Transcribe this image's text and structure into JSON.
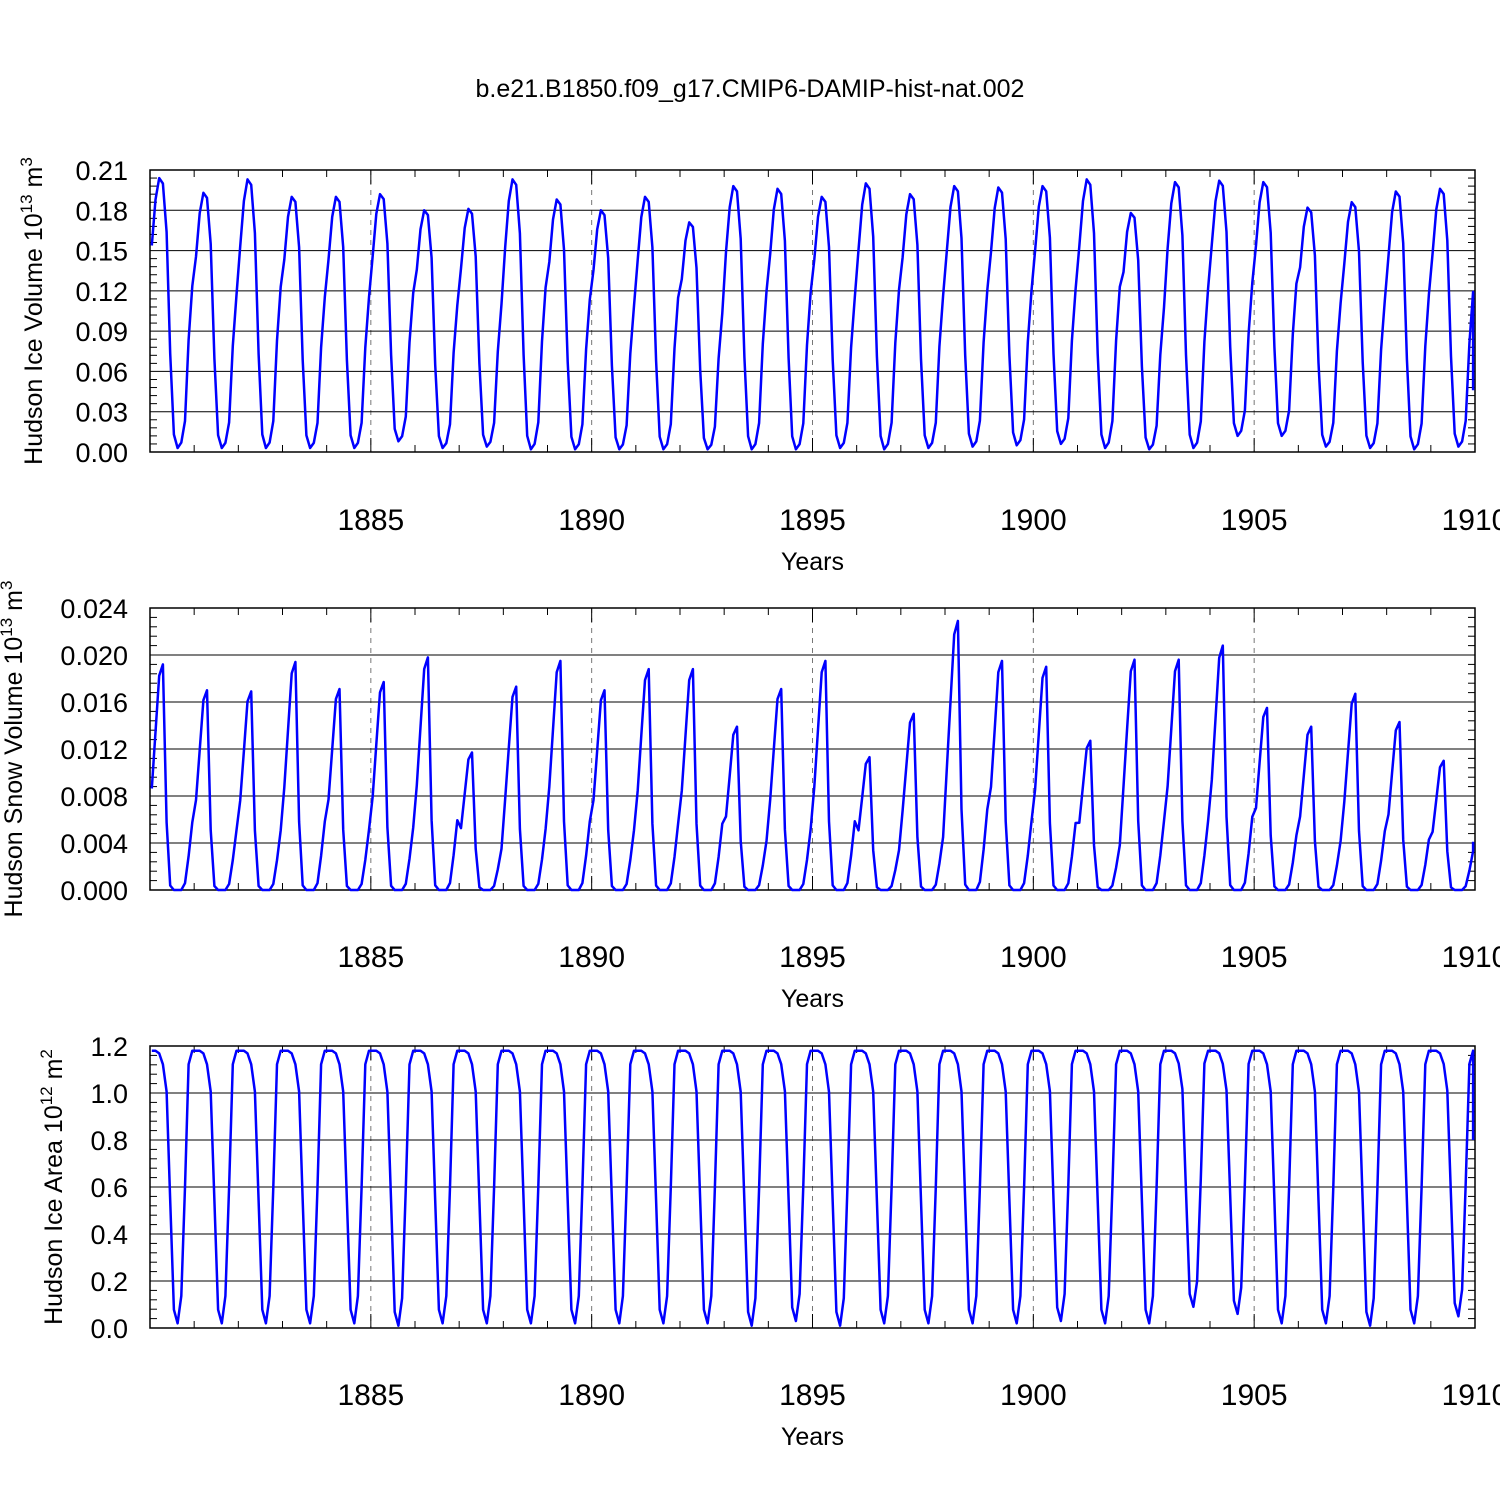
{
  "title": "b.e21.B1850.f09_g17.CMIP6-DAMIP-hist-nat.002",
  "colors": {
    "series": "#0000ff",
    "axis": "#000000",
    "refline": "#777777"
  },
  "chart_data": [
    {
      "type": "line",
      "ylabel_main": "Hudson Ice Volume 10",
      "ylabel_exp": "13",
      "ylabel_unit": " m",
      "ylabel_unit_exp": "3",
      "xlabel": "Years",
      "xlim": [
        1880.0,
        1910.0
      ],
      "ylim": [
        0,
        0.21
      ],
      "xticks": [
        1885,
        1890,
        1895,
        1900,
        1905,
        1910
      ],
      "yticks": [
        0.0,
        0.03,
        0.06,
        0.09,
        0.12,
        0.15,
        0.18,
        0.21
      ],
      "ytick_labels": [
        "0.00",
        "0.03",
        "0.06",
        "0.09",
        "0.12",
        "0.15",
        "0.18",
        "0.21"
      ],
      "series": [
        {
          "x_start": 1880.0417,
          "x_step": 0.08333,
          "max": [
            0.204,
            0.193,
            0.203,
            0.19,
            0.19,
            0.192,
            0.18,
            0.181,
            0.203,
            0.188,
            0.18,
            0.19,
            0.171,
            0.198,
            0.196,
            0.19,
            0.2,
            0.192,
            0.198,
            0.197,
            0.198,
            0.203,
            0.178,
            0.201,
            0.202,
            0.201,
            0.182,
            0.186,
            0.194,
            0.196
          ],
          "min": [
            0.003,
            0.003,
            0.003,
            0.003,
            0.003,
            0.008,
            0.003,
            0.004,
            0.002,
            0.002,
            0.002,
            0.002,
            0.002,
            0.002,
            0.002,
            0.003,
            0.002,
            0.003,
            0.004,
            0.005,
            0.006,
            0.003,
            0.002,
            0.003,
            0.012,
            0.012,
            0.004,
            0.003,
            0.002,
            0.004
          ],
          "x_end": 1909.958,
          "y_end": 0.046
        }
      ]
    },
    {
      "type": "line",
      "ylabel_main": "Hudson Snow Volume 10",
      "ylabel_exp": "13",
      "ylabel_unit": " m",
      "ylabel_unit_exp": "3",
      "xlabel": "Years",
      "xlim": [
        1880.0,
        1910.0
      ],
      "ylim": [
        0,
        0.024
      ],
      "xticks": [
        1885,
        1890,
        1895,
        1900,
        1905,
        1910
      ],
      "yticks": [
        0.0,
        0.004,
        0.008,
        0.012,
        0.016,
        0.02,
        0.024
      ],
      "ytick_labels": [
        "0.000",
        "0.004",
        "0.008",
        "0.012",
        "0.016",
        "0.020",
        "0.024"
      ],
      "series": [
        {
          "x_start": 1880.0417,
          "x_step": 0.08333,
          "max": [
            0.0192,
            0.017,
            0.0169,
            0.0194,
            0.0171,
            0.0177,
            0.0198,
            0.0117,
            0.0173,
            0.0195,
            0.017,
            0.0188,
            0.0188,
            0.0139,
            0.0171,
            0.0195,
            0.0113,
            0.015,
            0.0229,
            0.0195,
            0.019,
            0.0127,
            0.0196,
            0.0196,
            0.0208,
            0.0155,
            0.0139,
            0.0167,
            0.0143,
            0.011
          ],
          "min": [
            0.0,
            0.0,
            0.0,
            0.0,
            0.0,
            0.0,
            0.0,
            0.0,
            0.0,
            0.0,
            0.0,
            0.0,
            0.0,
            0.0,
            0.0,
            0.0,
            0.0,
            0.0,
            0.0,
            0.0,
            0.0,
            0.0,
            0.0,
            0.0,
            0.0,
            0.0,
            0.0,
            0.0,
            0.0,
            0.0
          ],
          "x_end": 1909.958,
          "y_end": 0.0041
        }
      ]
    },
    {
      "type": "line",
      "ylabel_main": "Hudson Ice Area 10",
      "ylabel_exp": "12",
      "ylabel_unit": " m",
      "ylabel_unit_exp": "2",
      "xlabel": "Years",
      "xlim": [
        1880.0,
        1910.0
      ],
      "ylim": [
        0,
        1.2
      ],
      "xticks": [
        1885,
        1890,
        1895,
        1900,
        1905,
        1910
      ],
      "yticks": [
        0.0,
        0.2,
        0.4,
        0.6,
        0.8,
        1.0,
        1.2
      ],
      "ytick_labels": [
        "0.0",
        "0.2",
        "0.4",
        "0.6",
        "0.8",
        "1.0",
        "1.2"
      ],
      "series": [
        {
          "x_start": 1880.0417,
          "x_step": 0.08333,
          "max": [
            1.18,
            1.18,
            1.18,
            1.18,
            1.18,
            1.18,
            1.18,
            1.18,
            1.18,
            1.18,
            1.18,
            1.18,
            1.18,
            1.18,
            1.18,
            1.18,
            1.18,
            1.18,
            1.18,
            1.18,
            1.18,
            1.18,
            1.18,
            1.18,
            1.18,
            1.18,
            1.18,
            1.18,
            1.18,
            1.18
          ],
          "min": [
            0.02,
            0.02,
            0.02,
            0.02,
            0.02,
            0.01,
            0.02,
            0.02,
            0.02,
            0.02,
            0.02,
            0.02,
            0.02,
            0.01,
            0.03,
            0.01,
            0.02,
            0.02,
            0.02,
            0.02,
            0.03,
            0.02,
            0.02,
            0.09,
            0.06,
            0.02,
            0.02,
            0.01,
            0.02,
            0.05
          ],
          "x_end": 1909.958,
          "y_end": 0.8
        }
      ]
    }
  ]
}
